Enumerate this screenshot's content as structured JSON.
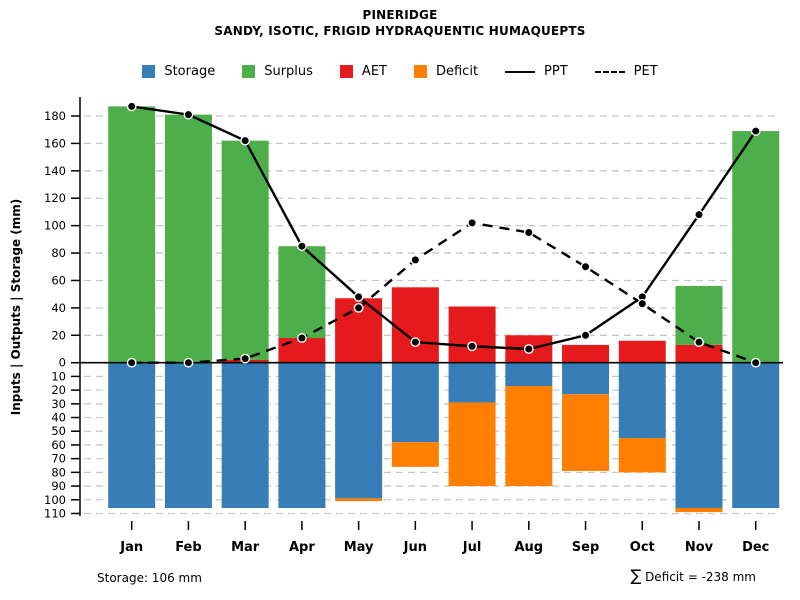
{
  "header": {
    "title": "PINERIDGE",
    "subtitle": "SANDY, ISOTIC, FRIGID HYDRAQUENTIC HUMAQUEPTS"
  },
  "legend": {
    "items": [
      {
        "label": "Storage",
        "swatch": "square",
        "color": "#377EB8"
      },
      {
        "label": "Surplus",
        "swatch": "square",
        "color": "#4DAF4A"
      },
      {
        "label": "AET",
        "swatch": "square",
        "color": "#E41A1C"
      },
      {
        "label": "Deficit",
        "swatch": "square",
        "color": "#FF7F00"
      },
      {
        "label": "PPT",
        "swatch": "solid-line",
        "color": "#000000"
      },
      {
        "label": "PET",
        "swatch": "dashed-line",
        "color": "#000000"
      }
    ]
  },
  "footer": {
    "storage_note": "Storage: 106 mm",
    "deficit_sigma": "∑",
    "deficit_note": " Deficit = -238 mm"
  },
  "chart_data": {
    "type": "bar",
    "title": "PINERIDGE",
    "subtitle": "SANDY, ISOTIC, FRIGID HYDRAQUENTIC HUMAQUEPTS",
    "ylabel": "Inputs | Outputs | Storage  (mm)",
    "xlabel": "",
    "categories": [
      "Jan",
      "Feb",
      "Mar",
      "Apr",
      "May",
      "Jun",
      "Jul",
      "Aug",
      "Sep",
      "Oct",
      "Nov",
      "Dec"
    ],
    "axis": {
      "upper_ticks": [
        0,
        20,
        40,
        60,
        80,
        100,
        120,
        140,
        160,
        180
      ],
      "lower_ticks": [
        10,
        20,
        30,
        40,
        50,
        60,
        70,
        80,
        90,
        100,
        110
      ],
      "ylim": [
        -115,
        195
      ],
      "grid": "dashed",
      "grid_color": "#C8C8C8",
      "zero_line_color": "#000000"
    },
    "series": [
      {
        "name": "Storage",
        "type": "bar",
        "direction": "down",
        "stack": "below",
        "color": "#377EB8",
        "values": [
          106,
          106,
          106,
          106,
          99,
          58,
          29,
          17,
          23,
          55,
          106,
          106
        ]
      },
      {
        "name": "Deficit",
        "type": "bar",
        "direction": "down",
        "stack": "below",
        "color": "#FF7F00",
        "values": [
          0,
          0,
          0,
          0,
          2,
          18,
          61,
          73,
          56,
          25,
          3,
          0
        ]
      },
      {
        "name": "AET",
        "type": "bar",
        "direction": "up",
        "stack": "above",
        "color": "#E41A1C",
        "values": [
          0,
          0,
          2,
          18,
          47,
          55,
          41,
          20,
          13,
          16,
          13,
          0
        ]
      },
      {
        "name": "Surplus",
        "type": "bar",
        "direction": "up",
        "stack": "above",
        "color": "#4DAF4A",
        "values": [
          187,
          181,
          160,
          67,
          0,
          0,
          0,
          0,
          0,
          0,
          43,
          169
        ]
      },
      {
        "name": "PPT",
        "type": "line",
        "style": "solid",
        "color": "#000000",
        "values": [
          187,
          181,
          162,
          85,
          48,
          15,
          12,
          10,
          20,
          48,
          108,
          169
        ]
      },
      {
        "name": "PET",
        "type": "line",
        "style": "dashed",
        "color": "#000000",
        "values": [
          0,
          0,
          3,
          18,
          40,
          75,
          102,
          95,
          70,
          43,
          15,
          0
        ]
      }
    ],
    "legend_position": "top",
    "annotations": {
      "storage_total": "Storage: 106 mm",
      "deficit_total": "∑ Deficit = -238 mm"
    }
  }
}
